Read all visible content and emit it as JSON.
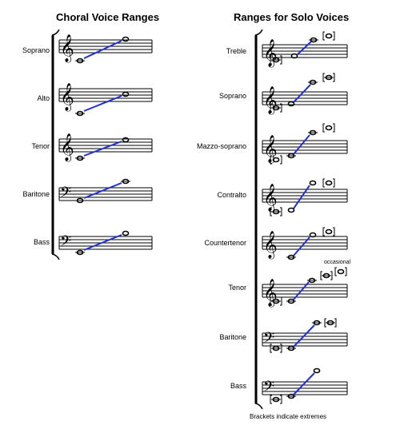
{
  "choral": {
    "title": "Choral Voice Ranges",
    "voices": [
      {
        "name": "Soprano",
        "clef": "treble"
      },
      {
        "name": "Alto",
        "clef": "treble"
      },
      {
        "name": "Tenor",
        "clef": "treble"
      },
      {
        "name": "Baritone",
        "clef": "bass"
      },
      {
        "name": "Bass",
        "clef": "bass"
      }
    ]
  },
  "solo": {
    "title": "Ranges for Solo Voices",
    "voices": [
      {
        "name": "Treble",
        "clef": "treble"
      },
      {
        "name": "Soprano",
        "clef": "treble"
      },
      {
        "name": "Mazzo-soprano",
        "clef": "treble"
      },
      {
        "name": "Contralto",
        "clef": "treble"
      },
      {
        "name": "Countertenor",
        "clef": "treble"
      },
      {
        "name": "Tenor",
        "clef": "treble"
      },
      {
        "name": "Baritone",
        "clef": "bass"
      },
      {
        "name": "Bass",
        "clef": "bass"
      }
    ],
    "occasional_note": "occasional",
    "footnote": "Brackets indicate extremes"
  },
  "colors": {
    "range_line": "#1f2fd8",
    "ink": "#000000"
  }
}
